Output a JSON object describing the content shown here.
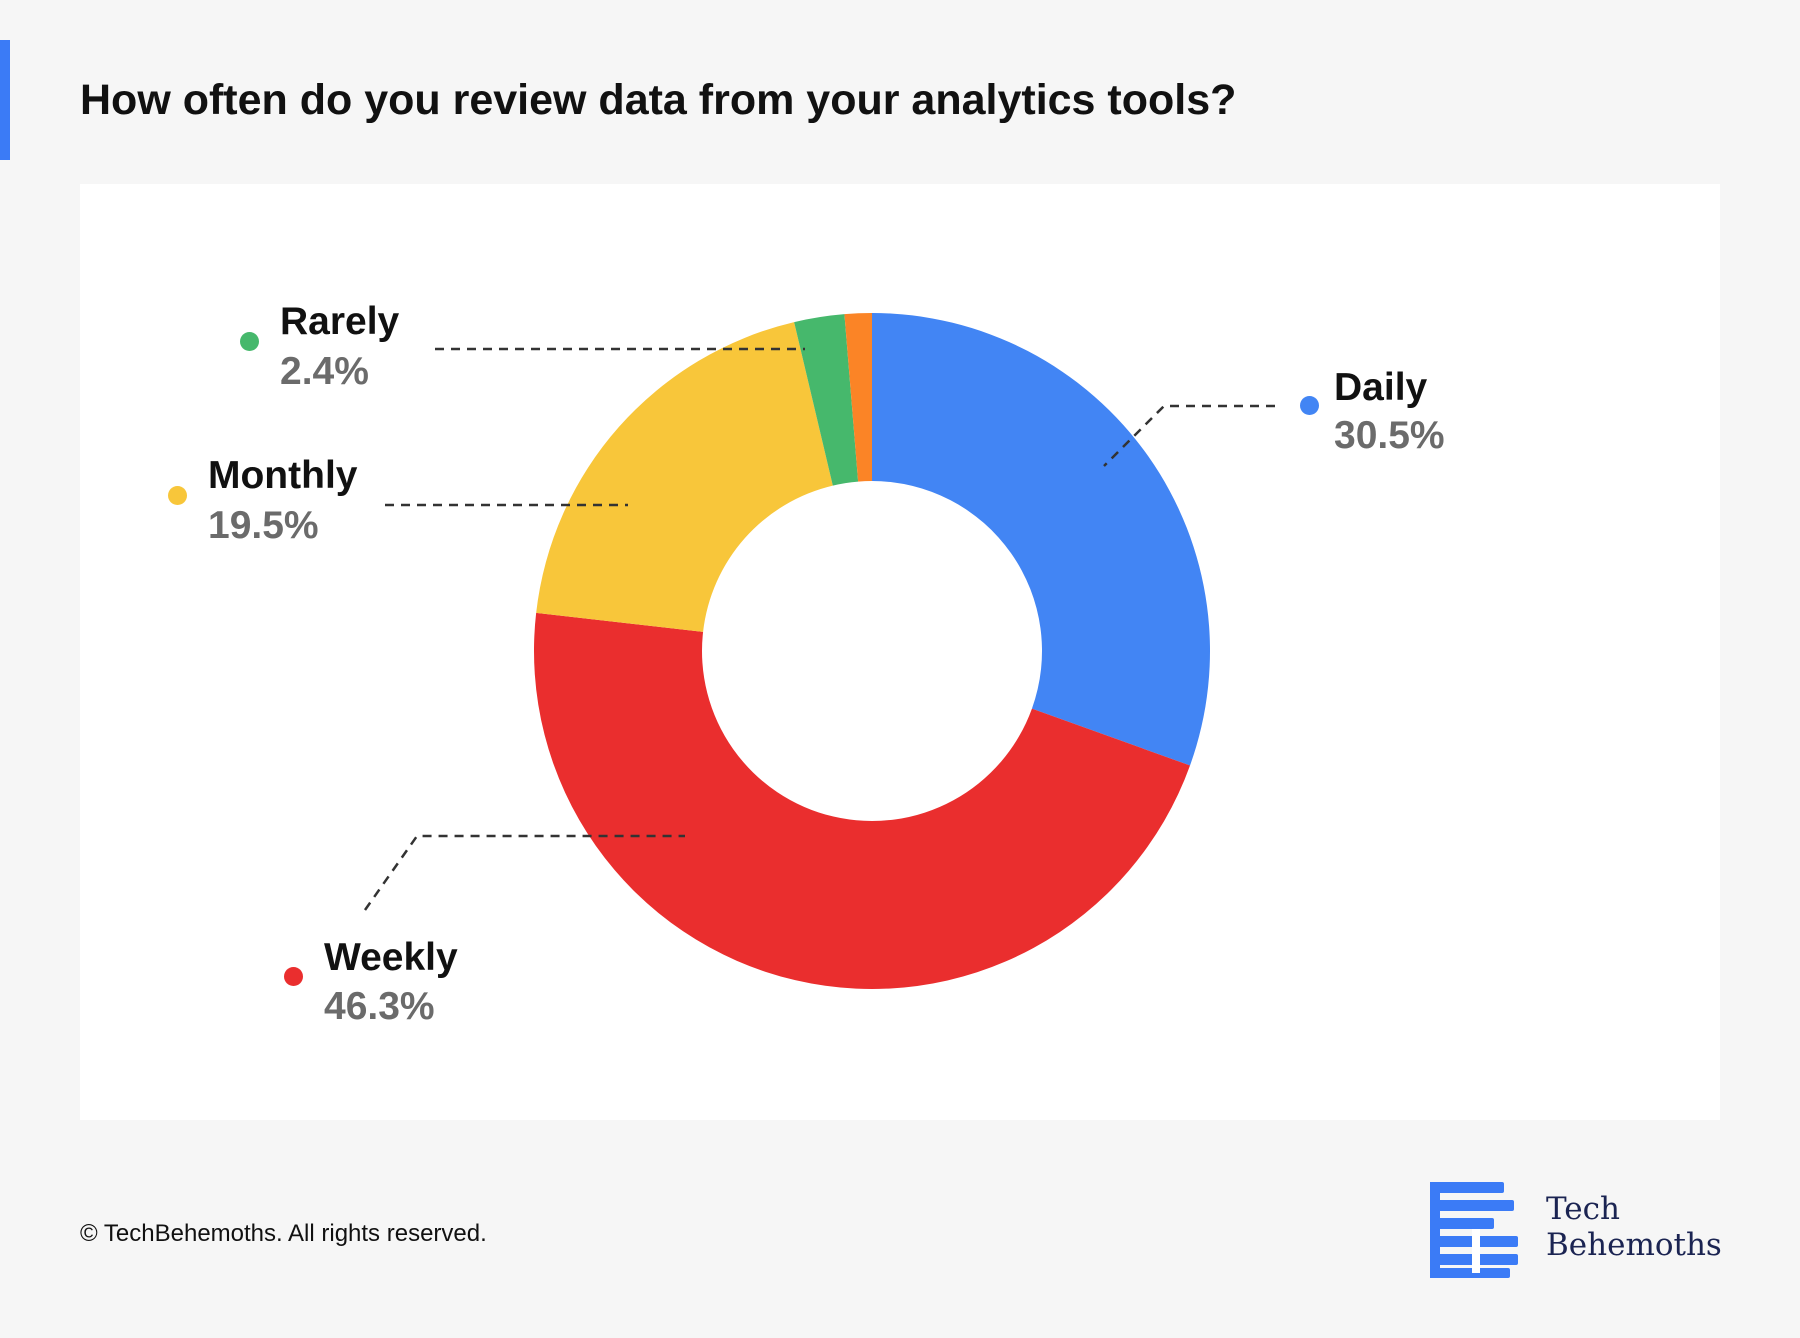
{
  "page": {
    "title": "How often do you review data from your analytics tools?",
    "footer": "© TechBehemoths. All rights reserved.",
    "logo": {
      "line1": "Tech",
      "line2": "Behemoths",
      "color": "#3b7bf6",
      "text_color": "#1b2452"
    },
    "accent_color": "#3b7bf6"
  },
  "chart_data": {
    "type": "pie",
    "donut": true,
    "categories": [
      "Daily",
      "Weekly",
      "Monthly",
      "Rarely",
      ""
    ],
    "values": [
      30.5,
      46.3,
      19.5,
      2.4,
      1.3
    ],
    "value_labels": [
      "30.5%",
      "46.3%",
      "19.5%",
      "2.4%",
      ""
    ],
    "colors": [
      "#4285f4",
      "#ea2e2e",
      "#f8c63a",
      "#46b86c",
      "#fb8426"
    ]
  }
}
